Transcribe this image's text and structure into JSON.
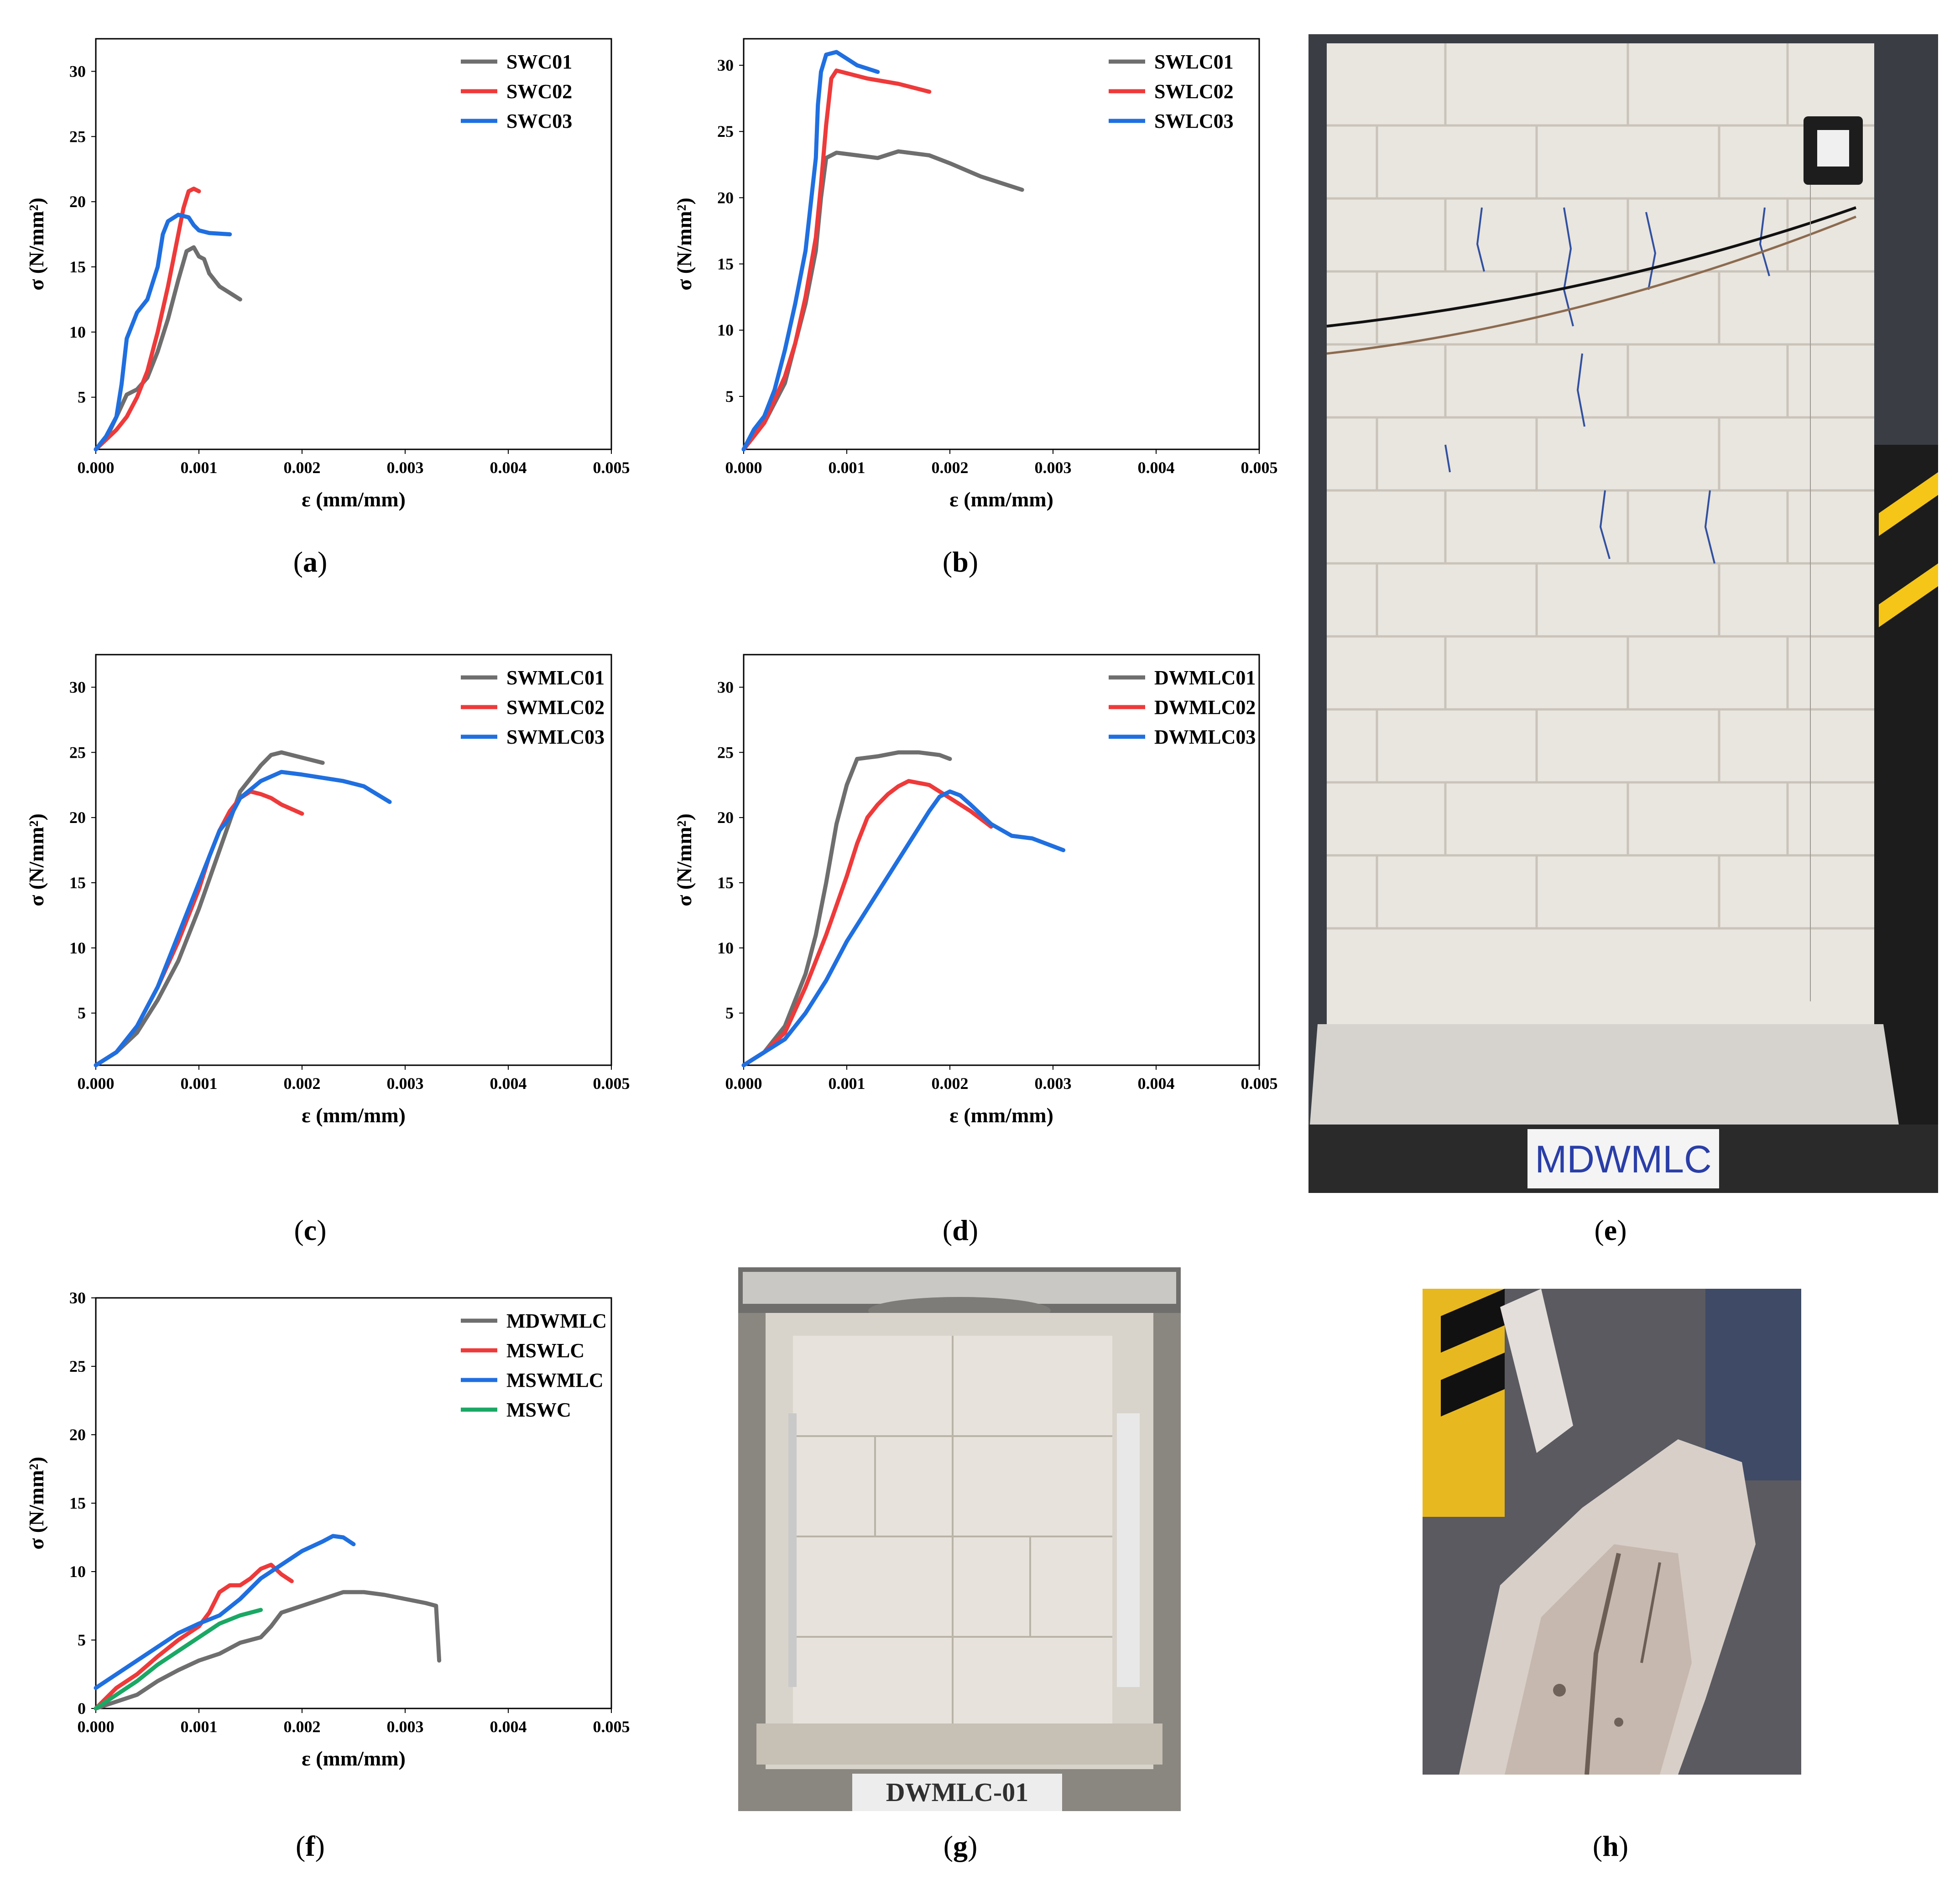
{
  "captions": {
    "a": {
      "open": "(",
      "letter": "a",
      "close": ")"
    },
    "b": {
      "open": "(",
      "letter": "b",
      "close": ")"
    },
    "c": {
      "open": "(",
      "letter": "c",
      "close": ")"
    },
    "d": {
      "open": "(",
      "letter": "d",
      "close": ")"
    },
    "e": {
      "open": "(",
      "letter": "e",
      "close": ")"
    },
    "f": {
      "open": "(",
      "letter": "f",
      "close": ")"
    },
    "g": {
      "open": "(",
      "letter": "g",
      "close": ")"
    },
    "h": {
      "open": "(",
      "letter": "h",
      "close": ")"
    }
  },
  "photos": {
    "e": {
      "label": "MDWMLC",
      "icon": "wall-photo"
    },
    "g": {
      "label": "DWMLC-01",
      "icon": "test-rig-photo"
    },
    "h": {
      "icon": "crushed-block-photo"
    }
  },
  "colors": {
    "gray": "#6e6e6e",
    "red": "#ee3a3a",
    "blue": "#1f6fe0",
    "green": "#1aa864"
  },
  "chart_data": [
    {
      "id": "a",
      "type": "line",
      "xlabel": "ε (mm/mm)",
      "ylabel": "σ (N/mm²)",
      "xlim": [
        0,
        0.005
      ],
      "ylim": [
        1,
        32.5
      ],
      "xticks": [
        0,
        0.001,
        0.002,
        0.003,
        0.004,
        0.005
      ],
      "xtick_labels": [
        "0.000",
        "0.001",
        "0.002",
        "0.003",
        "0.004",
        "0.005"
      ],
      "yticks": [
        5,
        10,
        15,
        20,
        25,
        30
      ],
      "ytick_labels": [
        "5",
        "10",
        "15",
        "20",
        "25",
        "30"
      ],
      "legend": "top-right",
      "series": [
        {
          "name": "SWC01",
          "color": "#6e6e6e",
          "x": [
            0,
            0.0001,
            0.0002,
            0.0003,
            0.0004,
            0.0005,
            0.0006,
            0.0007,
            0.0008,
            0.00088,
            0.00095,
            0.001,
            0.00105,
            0.0011,
            0.0012,
            0.0013,
            0.0014
          ],
          "y": [
            1,
            1.8,
            3.5,
            5.2,
            5.6,
            6.5,
            8.5,
            11,
            14,
            16.2,
            16.5,
            15.8,
            15.6,
            14.5,
            13.5,
            13,
            12.5
          ]
        },
        {
          "name": "SWC02",
          "color": "#ee3a3a",
          "x": [
            0,
            0.0002,
            0.0003,
            0.0004,
            0.0005,
            0.0006,
            0.0007,
            0.0008,
            0.00085,
            0.0009,
            0.00095,
            0.001
          ],
          "y": [
            1,
            2.5,
            3.5,
            5,
            7,
            10,
            13.5,
            17.5,
            19.5,
            20.8,
            21,
            20.8
          ]
        },
        {
          "name": "SWC03",
          "color": "#1f6fe0",
          "x": [
            0,
            0.0001,
            0.0002,
            0.00025,
            0.0003,
            0.0004,
            0.0005,
            0.0006,
            0.00065,
            0.0007,
            0.0008,
            0.0009,
            0.00095,
            0.001,
            0.0011,
            0.0013
          ],
          "y": [
            1,
            2,
            3.5,
            6,
            9.5,
            11.5,
            12.5,
            15,
            17.5,
            18.5,
            19,
            18.8,
            18.2,
            17.8,
            17.6,
            17.5
          ]
        }
      ]
    },
    {
      "id": "b",
      "type": "line",
      "xlabel": "ε (mm/mm)",
      "ylabel": "σ (N/mm²)",
      "xlim": [
        0,
        0.005
      ],
      "ylim": [
        1,
        32
      ],
      "xticks": [
        0,
        0.001,
        0.002,
        0.003,
        0.004,
        0.005
      ],
      "xtick_labels": [
        "0.000",
        "0.001",
        "0.002",
        "0.003",
        "0.004",
        "0.005"
      ],
      "yticks": [
        5,
        10,
        15,
        20,
        25,
        30
      ],
      "ytick_labels": [
        "5",
        "10",
        "15",
        "20",
        "25",
        "30"
      ],
      "legend": "top-right",
      "series": [
        {
          "name": "SWLC01",
          "color": "#6e6e6e",
          "x": [
            0,
            0.0002,
            0.0004,
            0.0005,
            0.0006,
            0.0007,
            0.00075,
            0.0008,
            0.0009,
            0.0011,
            0.0013,
            0.0015,
            0.0016,
            0.0018,
            0.002,
            0.0023,
            0.0027
          ],
          "y": [
            1,
            3,
            6,
            9,
            12,
            16,
            20,
            23,
            23.4,
            23.2,
            23,
            23.5,
            23.4,
            23.2,
            22.6,
            21.6,
            20.6
          ]
        },
        {
          "name": "SWLC02",
          "color": "#ee3a3a",
          "x": [
            0,
            0.0002,
            0.0004,
            0.0005,
            0.0006,
            0.0007,
            0.00075,
            0.0008,
            0.00085,
            0.0009,
            0.0012,
            0.0015,
            0.0018
          ],
          "y": [
            1,
            3,
            6.5,
            9,
            12.5,
            17,
            21,
            25.5,
            29,
            29.6,
            29,
            28.6,
            28
          ]
        },
        {
          "name": "SWLC03",
          "color": "#1f6fe0",
          "x": [
            0,
            0.0001,
            0.0002,
            0.0003,
            0.0004,
            0.0005,
            0.0006,
            0.00065,
            0.0007,
            0.00072,
            0.00075,
            0.0008,
            0.0009,
            0.001,
            0.0011,
            0.0013
          ],
          "y": [
            1,
            2.5,
            3.5,
            5.5,
            8.5,
            12,
            16,
            19.5,
            23,
            27,
            29.5,
            30.8,
            31,
            30.5,
            30,
            29.5
          ]
        }
      ]
    },
    {
      "id": "c",
      "type": "line",
      "xlabel": "ε (mm/mm)",
      "ylabel": "σ (N/mm²)",
      "xlim": [
        0,
        0.005
      ],
      "ylim": [
        1,
        32.5
      ],
      "xticks": [
        0,
        0.001,
        0.002,
        0.003,
        0.004,
        0.005
      ],
      "xtick_labels": [
        "0.000",
        "0.001",
        "0.002",
        "0.003",
        "0.004",
        "0.005"
      ],
      "yticks": [
        5,
        10,
        15,
        20,
        25,
        30
      ],
      "ytick_labels": [
        "5",
        "10",
        "15",
        "20",
        "25",
        "30"
      ],
      "legend": "top-right",
      "series": [
        {
          "name": "SWMLC01",
          "color": "#6e6e6e",
          "x": [
            0,
            0.0002,
            0.0004,
            0.0006,
            0.0008,
            0.001,
            0.0012,
            0.0014,
            0.0016,
            0.0017,
            0.0018,
            0.0019,
            0.002,
            0.0022
          ],
          "y": [
            1,
            2,
            3.5,
            6,
            9,
            13,
            17.5,
            22,
            24,
            24.8,
            25,
            24.8,
            24.6,
            24.2
          ]
        },
        {
          "name": "SWMLC02",
          "color": "#ee3a3a",
          "x": [
            0,
            0.0002,
            0.0004,
            0.0006,
            0.0008,
            0.001,
            0.0011,
            0.0012,
            0.0013,
            0.0014,
            0.0015,
            0.0016,
            0.0017,
            0.0018,
            0.002
          ],
          "y": [
            1,
            2,
            4,
            7,
            10.5,
            14.5,
            17,
            19,
            20.5,
            21.5,
            22,
            21.8,
            21.5,
            21,
            20.3
          ]
        },
        {
          "name": "SWMLC03",
          "color": "#1f6fe0",
          "x": [
            0,
            0.0002,
            0.0004,
            0.0006,
            0.0008,
            0.001,
            0.0011,
            0.0012,
            0.0013,
            0.0014,
            0.0016,
            0.0018,
            0.002,
            0.0024,
            0.0026,
            0.00285
          ],
          "y": [
            1,
            2,
            4,
            7,
            11,
            15,
            17,
            19,
            20,
            21.5,
            22.8,
            23.5,
            23.3,
            22.8,
            22.4,
            21.2
          ]
        }
      ]
    },
    {
      "id": "d",
      "type": "line",
      "xlabel": "ε (mm/mm)",
      "ylabel": "σ (N/mm²)",
      "xlim": [
        0,
        0.005
      ],
      "ylim": [
        1,
        32.5
      ],
      "xticks": [
        0,
        0.001,
        0.002,
        0.003,
        0.004,
        0.005
      ],
      "xtick_labels": [
        "0.000",
        "0.001",
        "0.002",
        "0.003",
        "0.004",
        "0.005"
      ],
      "yticks": [
        5,
        10,
        15,
        20,
        25,
        30
      ],
      "ytick_labels": [
        "5",
        "10",
        "15",
        "20",
        "25",
        "30"
      ],
      "legend": "top-right",
      "series": [
        {
          "name": "DWMLC01",
          "color": "#6e6e6e",
          "x": [
            0,
            0.0002,
            0.0004,
            0.0006,
            0.0007,
            0.0008,
            0.0009,
            0.001,
            0.0011,
            0.0013,
            0.0015,
            0.0017,
            0.0019,
            0.002
          ],
          "y": [
            1,
            2,
            4,
            8,
            11,
            15,
            19.5,
            22.5,
            24.5,
            24.7,
            25,
            25,
            24.8,
            24.5
          ]
        },
        {
          "name": "DWMLC02",
          "color": "#ee3a3a",
          "x": [
            0,
            0.0002,
            0.0004,
            0.0006,
            0.0008,
            0.001,
            0.0011,
            0.0012,
            0.0013,
            0.0014,
            0.0015,
            0.0016,
            0.0018,
            0.002,
            0.0022,
            0.0024
          ],
          "y": [
            1,
            2,
            3.5,
            7,
            11,
            15.5,
            18,
            20,
            21,
            21.8,
            22.4,
            22.8,
            22.5,
            21.5,
            20.5,
            19.3
          ]
        },
        {
          "name": "DWMLC03",
          "color": "#1f6fe0",
          "x": [
            0,
            0.0002,
            0.0004,
            0.0006,
            0.0008,
            0.001,
            0.0012,
            0.0014,
            0.0016,
            0.0018,
            0.0019,
            0.002,
            0.0021,
            0.0022,
            0.0024,
            0.0026,
            0.0028,
            0.003,
            0.0031
          ],
          "y": [
            1,
            2,
            3,
            5,
            7.5,
            10.5,
            13,
            15.5,
            18,
            20.5,
            21.6,
            22,
            21.7,
            21,
            19.5,
            18.6,
            18.4,
            17.8,
            17.5
          ]
        }
      ]
    },
    {
      "id": "f",
      "type": "line",
      "xlabel": "ε (mm/mm)",
      "ylabel": "σ (N/mm²)",
      "xlim": [
        0,
        0.005
      ],
      "ylim": [
        0,
        30
      ],
      "xticks": [
        0,
        0.001,
        0.002,
        0.003,
        0.004,
        0.005
      ],
      "xtick_labels": [
        "0.000",
        "0.001",
        "0.002",
        "0.003",
        "0.004",
        "0.005"
      ],
      "yticks": [
        0,
        5,
        10,
        15,
        20,
        25,
        30
      ],
      "ytick_labels": [
        "0",
        "5",
        "10",
        "15",
        "20",
        "25",
        "30"
      ],
      "legend": "top-right",
      "series": [
        {
          "name": "MDWMLC",
          "color": "#6e6e6e",
          "x": [
            0,
            0.0002,
            0.0004,
            0.0006,
            0.0008,
            0.001,
            0.0012,
            0.0014,
            0.0016,
            0.0017,
            0.0018,
            0.002,
            0.0022,
            0.0024,
            0.0026,
            0.0028,
            0.003,
            0.0032,
            0.0033,
            0.00333
          ],
          "y": [
            0,
            0.5,
            1,
            2,
            2.8,
            3.5,
            4,
            4.8,
            5.2,
            6,
            7,
            7.5,
            8,
            8.5,
            8.5,
            8.3,
            8,
            7.7,
            7.5,
            3.5
          ]
        },
        {
          "name": "MSWLC",
          "color": "#ee3a3a",
          "x": [
            0,
            0.0002,
            0.0004,
            0.0006,
            0.0008,
            0.001,
            0.0011,
            0.0012,
            0.0013,
            0.0014,
            0.0015,
            0.0016,
            0.0017,
            0.0018,
            0.0019
          ],
          "y": [
            0,
            1.5,
            2.5,
            3.8,
            5,
            6,
            7,
            8.5,
            9,
            9,
            9.5,
            10.2,
            10.5,
            9.8,
            9.3
          ]
        },
        {
          "name": "MSWMLC",
          "color": "#1f6fe0",
          "x": [
            0,
            0.0002,
            0.0004,
            0.0006,
            0.0008,
            0.001,
            0.0012,
            0.0014,
            0.0016,
            0.0018,
            0.002,
            0.0022,
            0.0023,
            0.0024,
            0.0025
          ],
          "y": [
            1.5,
            2.5,
            3.5,
            4.5,
            5.5,
            6.2,
            6.8,
            8,
            9.5,
            10.5,
            11.5,
            12.2,
            12.6,
            12.5,
            12
          ]
        },
        {
          "name": "MSWC",
          "color": "#1aa864",
          "x": [
            0,
            0.0002,
            0.0004,
            0.0006,
            0.0008,
            0.001,
            0.0012,
            0.0013,
            0.0014,
            0.0015,
            0.0016
          ],
          "y": [
            0,
            1,
            2,
            3.2,
            4.2,
            5.2,
            6.2,
            6.5,
            6.8,
            7,
            7.2
          ]
        }
      ]
    }
  ]
}
